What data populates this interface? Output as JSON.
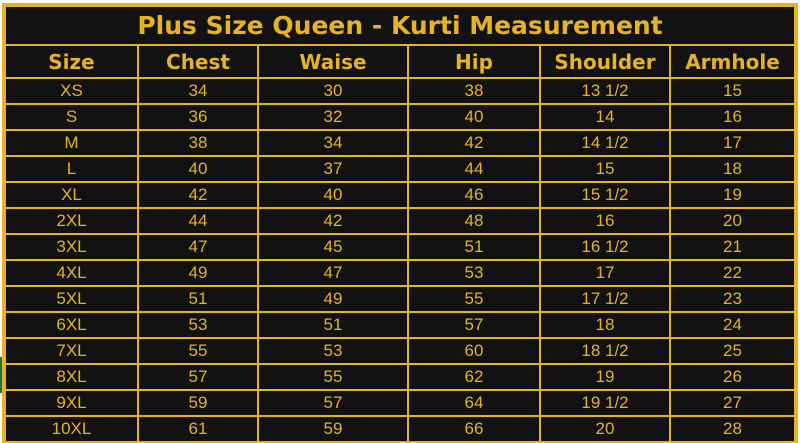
{
  "title": "Plus Size Queen - Kurti Measurement",
  "columns": [
    "Size",
    "Chest",
    "Waise",
    "Hip",
    "Shoulder",
    "Armhole"
  ],
  "rows": [
    [
      "XS",
      "34",
      "30",
      "38",
      "13 1/2",
      "15"
    ],
    [
      "S",
      "36",
      "32",
      "40",
      "14",
      "16"
    ],
    [
      "M",
      "38",
      "34",
      "42",
      "14 1/2",
      "17"
    ],
    [
      "L",
      "40",
      "37",
      "44",
      "15",
      "18"
    ],
    [
      "XL",
      "42",
      "40",
      "46",
      "15 1/2",
      "19"
    ],
    [
      "2XL",
      "44",
      "42",
      "48",
      "16",
      "20"
    ],
    [
      "3XL",
      "47",
      "45",
      "51",
      "16 1/2",
      "21"
    ],
    [
      "4XL",
      "49",
      "47",
      "53",
      "17",
      "22"
    ],
    [
      "5XL",
      "51",
      "49",
      "55",
      "17 1/2",
      "23"
    ],
    [
      "6XL",
      "53",
      "51",
      "57",
      "18",
      "24"
    ],
    [
      "7XL",
      "55",
      "53",
      "60",
      "18 1/2",
      "25"
    ],
    [
      "8XL",
      "57",
      "55",
      "62",
      "19",
      "26"
    ],
    [
      "9XL",
      "59",
      "57",
      "64",
      "19 1/2",
      "27"
    ],
    [
      "10XL",
      "61",
      "59",
      "66",
      "20",
      "28"
    ]
  ],
  "colors": {
    "background": "#121212",
    "accent": "#e6b41e"
  }
}
